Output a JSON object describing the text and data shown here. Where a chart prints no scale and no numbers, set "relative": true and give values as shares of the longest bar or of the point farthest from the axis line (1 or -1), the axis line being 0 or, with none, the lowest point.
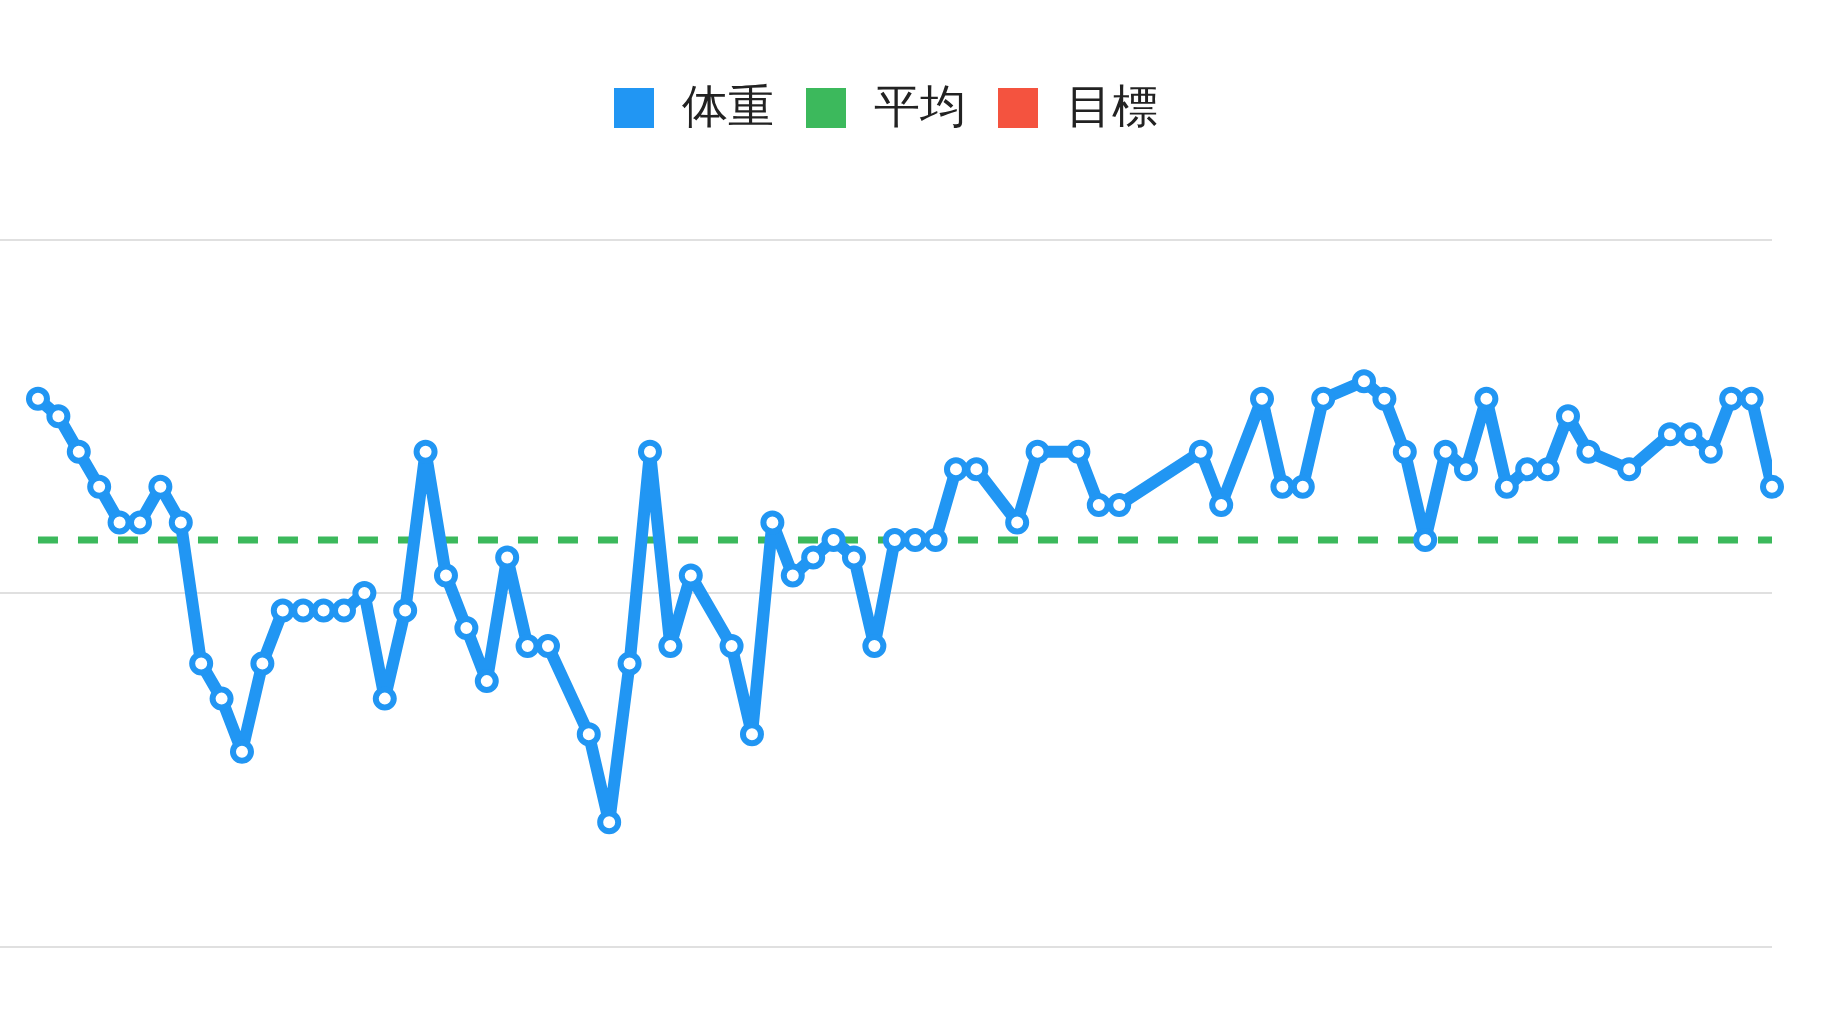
{
  "chart_data": {
    "type": "line",
    "relative": true,
    "legend": "top",
    "marker": "circle",
    "line_style": "solid",
    "categories": [
      null,
      null,
      null,
      null,
      null,
      null,
      null,
      null,
      null,
      null,
      null,
      null,
      null,
      null,
      null,
      null,
      null,
      null,
      null,
      null,
      null,
      null,
      null,
      null,
      null,
      null,
      null,
      null,
      null,
      null,
      null,
      null,
      null,
      null,
      null,
      null,
      null,
      null,
      null,
      null,
      null,
      null,
      null,
      null,
      null,
      null,
      null,
      null,
      null,
      null,
      null,
      null,
      null,
      null,
      null,
      null,
      null,
      null,
      null,
      null,
      null,
      null,
      null,
      null,
      null,
      null,
      null,
      null,
      null,
      null,
      null,
      null,
      null,
      null,
      null,
      null,
      null,
      null,
      null,
      null,
      null,
      null,
      null,
      null,
      null,
      null
    ],
    "series": [
      {
        "name": "体重",
        "color": "#2196f3",
        "values": [
          0.969,
          0.938,
          0.875,
          0.813,
          0.75,
          0.75,
          0.813,
          0.75,
          0.5,
          0.438,
          0.344,
          0.5,
          0.594,
          0.594,
          0.594,
          0.594,
          0.625,
          0.438,
          0.594,
          0.875,
          0.656,
          0.563,
          0.469,
          0.688,
          0.531,
          0.531,
          null,
          0.375,
          0.219,
          0.5,
          0.875,
          0.531,
          0.656,
          null,
          0.531,
          0.375,
          0.75,
          0.656,
          0.688,
          0.719,
          0.688,
          0.531,
          0.719,
          0.719,
          0.719,
          0.844,
          0.844,
          null,
          0.75,
          0.875,
          null,
          0.875,
          0.781,
          0.781,
          null,
          null,
          null,
          0.875,
          0.781,
          null,
          0.969,
          0.813,
          0.813,
          0.969,
          null,
          1,
          0.969,
          0.875,
          0.719,
          0.875,
          0.844,
          0.969,
          0.813,
          0.844,
          0.844,
          0.938,
          0.875,
          null,
          0.844,
          null,
          0.906,
          0.906,
          0.875,
          0.969,
          0.969,
          0.813
        ]
      },
      {
        "name": "平均",
        "color": "#3cb95c",
        "line_style": "dashed",
        "marker": "none",
        "values": [
          0.719,
          0.719,
          0.719,
          0.719,
          0.719,
          0.719,
          0.719,
          0.719,
          0.719,
          0.719,
          0.719,
          0.719,
          0.719,
          0.719,
          0.719,
          0.719,
          0.719,
          0.719,
          0.719,
          0.719,
          0.719,
          0.719,
          0.719,
          0.719,
          0.719,
          0.719,
          0.719,
          0.719,
          0.719,
          0.719,
          0.719,
          0.719,
          0.719,
          0.719,
          0.719,
          0.719,
          0.719,
          0.719,
          0.719,
          0.719,
          0.719,
          0.719,
          0.719,
          0.719,
          0.719,
          0.719,
          0.719,
          0.719,
          0.719,
          0.719,
          0.719,
          0.719,
          0.719,
          0.719,
          0.719,
          0.719,
          0.719,
          0.719,
          0.719,
          0.719,
          0.719,
          0.719,
          0.719,
          0.719,
          0.719,
          0.719,
          0.719,
          0.719,
          0.719,
          0.719,
          0.719,
          0.719,
          0.719,
          0.719,
          0.719,
          0.719,
          0.719,
          0.719,
          0.719,
          0.719,
          0.719,
          0.719,
          0.719,
          0.719,
          0.719,
          0.719
        ]
      },
      {
        "name": "目標",
        "color": "#f4533f",
        "values": [
          null,
          null,
          null,
          null,
          null,
          null,
          null,
          null,
          null,
          null,
          null,
          null,
          null,
          null,
          null,
          null,
          null,
          null,
          null,
          null,
          null,
          null,
          null,
          null,
          null,
          null,
          null,
          null,
          null,
          null,
          null,
          null,
          null,
          null,
          null,
          null,
          null,
          null,
          null,
          null,
          null,
          null,
          null,
          null,
          null,
          null,
          null,
          null,
          null,
          null,
          null,
          null,
          null,
          null,
          null,
          null,
          null,
          null,
          null,
          null,
          null,
          null,
          null,
          null,
          null,
          null,
          null,
          null,
          null,
          null,
          null,
          null,
          null,
          null,
          null,
          null,
          null,
          null,
          null,
          null,
          null,
          null,
          null,
          null,
          null,
          null
        ]
      }
    ],
    "ref_lines": [
      {
        "axis": "y",
        "value": 1.25,
        "color": "#e0e0e0"
      },
      {
        "axis": "y",
        "value": 0.625,
        "color": "#e0e0e0"
      }
    ]
  }
}
